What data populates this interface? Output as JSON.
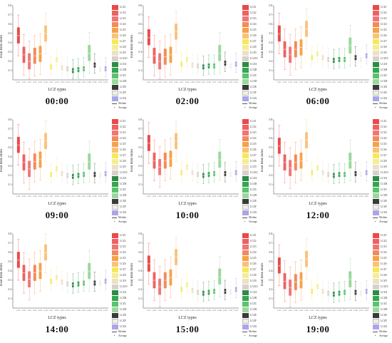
{
  "chart_data": [
    {
      "type": "box",
      "title": "00:00",
      "xlabel": "LCZ types",
      "ylabel": "Heat Risk Index",
      "ylim": [
        0,
        0.8
      ],
      "yticks": [
        "0.1",
        "0.2",
        "0.3",
        "0.4",
        "0.5",
        "0.6",
        "0.7",
        "0.8"
      ],
      "categories": [
        "LCZ1",
        "LCZ2",
        "LCZ3",
        "LCZ4",
        "LCZ5",
        "LCZ6",
        "LCZ7",
        "LCZ8",
        "LCZ9",
        "LCZ10",
        "LCZA",
        "LCZB",
        "LCZC",
        "LCZD",
        "LCZE",
        "LCZF",
        "LCZG"
      ],
      "medians": [
        0.48,
        0.27,
        0.2,
        0.26,
        0.28,
        0.5,
        0.14,
        0.22,
        0.13,
        0.12,
        0.1,
        0.11,
        0.12,
        0.29,
        0.16,
        0.11,
        0.12
      ],
      "averages": [
        0.47,
        0.27,
        0.2,
        0.26,
        0.28,
        0.5,
        0.14,
        0.21,
        0.13,
        0.12,
        0.1,
        0.11,
        0.12,
        0.28,
        0.16,
        0.12,
        0.12
      ]
    },
    {
      "type": "box",
      "title": "02:00",
      "xlabel": "LCZ types",
      "ylabel": "Heat Risk Index",
      "ylim": [
        0,
        0.8
      ],
      "yticks": [
        "0.1",
        "0.2",
        "0.3",
        "0.4",
        "0.5",
        "0.6",
        "0.7",
        "0.8"
      ],
      "categories": [
        "LCZ1",
        "LCZ2",
        "LCZ3",
        "LCZ4",
        "LCZ5",
        "LCZ6",
        "LCZ7",
        "LCZ8",
        "LCZ9",
        "LCZ10",
        "LCZA",
        "LCZB",
        "LCZC",
        "LCZD",
        "LCZE",
        "LCZF",
        "LCZG"
      ],
      "medians": [
        0.46,
        0.26,
        0.2,
        0.25,
        0.27,
        0.52,
        0.17,
        0.22,
        0.16,
        0.15,
        0.14,
        0.15,
        0.15,
        0.29,
        0.18,
        0.15,
        0.17
      ],
      "averages": [
        0.45,
        0.26,
        0.2,
        0.25,
        0.27,
        0.52,
        0.17,
        0.21,
        0.16,
        0.15,
        0.14,
        0.15,
        0.15,
        0.28,
        0.18,
        0.16,
        0.17
      ]
    },
    {
      "type": "box",
      "title": "06:00",
      "xlabel": "LCZ types",
      "ylabel": "Heat Risk Index",
      "ylim": [
        0,
        0.8
      ],
      "yticks": [
        "0.1",
        "0.2",
        "0.3",
        "0.4",
        "0.5",
        "0.6",
        "0.7",
        "0.8"
      ],
      "categories": [
        "LCZ1",
        "LCZ2",
        "LCZ3",
        "LCZ4",
        "LCZ5",
        "LCZ6",
        "LCZ7",
        "LCZ8",
        "LCZ9",
        "LCZ10",
        "LCZA",
        "LCZB",
        "LCZC",
        "LCZD",
        "LCZE",
        "LCZF",
        "LCZG"
      ],
      "medians": [
        0.5,
        0.33,
        0.27,
        0.33,
        0.35,
        0.55,
        0.24,
        0.28,
        0.24,
        0.22,
        0.21,
        0.22,
        0.22,
        0.37,
        0.24,
        0.22,
        0.26
      ],
      "averages": [
        0.49,
        0.33,
        0.27,
        0.33,
        0.35,
        0.55,
        0.24,
        0.27,
        0.24,
        0.22,
        0.21,
        0.22,
        0.22,
        0.36,
        0.24,
        0.23,
        0.26
      ]
    },
    {
      "type": "box",
      "title": "09:00",
      "xlabel": "LCZ types",
      "ylabel": "Heat Risk Index",
      "ylim": [
        0,
        0.8
      ],
      "yticks": [
        "0.1",
        "0.2",
        "0.3",
        "0.4",
        "0.5",
        "0.6",
        "0.7",
        "0.8"
      ],
      "categories": [
        "LCZ1",
        "LCZ2",
        "LCZ3",
        "LCZ4",
        "LCZ5",
        "LCZ6",
        "LCZ7",
        "LCZ8",
        "LCZ9",
        "LCZ10",
        "LCZA",
        "LCZB",
        "LCZC",
        "LCZD",
        "LCZE",
        "LCZF",
        "LCZG"
      ],
      "medians": [
        0.53,
        0.34,
        0.27,
        0.35,
        0.37,
        0.57,
        0.21,
        0.27,
        0.22,
        0.2,
        0.19,
        0.2,
        0.21,
        0.35,
        0.21,
        0.2,
        0.22
      ],
      "averages": [
        0.52,
        0.34,
        0.27,
        0.35,
        0.37,
        0.57,
        0.21,
        0.26,
        0.22,
        0.2,
        0.19,
        0.2,
        0.21,
        0.34,
        0.21,
        0.21,
        0.22
      ]
    },
    {
      "type": "box",
      "title": "10:00",
      "xlabel": "LCZ types",
      "ylabel": "Heat Risk Index",
      "ylim": [
        0,
        0.8
      ],
      "yticks": [
        "0.1",
        "0.2",
        "0.3",
        "0.4",
        "0.5",
        "0.6",
        "0.7",
        "0.8"
      ],
      "categories": [
        "LCZ1",
        "LCZ2",
        "LCZ3",
        "LCZ4",
        "LCZ5",
        "LCZ6",
        "LCZ7",
        "LCZ8",
        "LCZ9",
        "LCZ10",
        "LCZA",
        "LCZB",
        "LCZC",
        "LCZD",
        "LCZE",
        "LCZF",
        "LCZG"
      ],
      "medians": [
        0.55,
        0.36,
        0.29,
        0.36,
        0.38,
        0.57,
        0.23,
        0.29,
        0.23,
        0.21,
        0.2,
        0.21,
        0.22,
        0.37,
        0.22,
        0.21,
        0.23
      ],
      "averages": [
        0.54,
        0.36,
        0.29,
        0.36,
        0.38,
        0.57,
        0.23,
        0.28,
        0.23,
        0.21,
        0.2,
        0.21,
        0.22,
        0.36,
        0.22,
        0.22,
        0.23
      ]
    },
    {
      "type": "box",
      "title": "12:00",
      "xlabel": "LCZ types",
      "ylabel": "Heat Risk Index",
      "ylim": [
        0,
        0.8
      ],
      "yticks": [
        "0.1",
        "0.2",
        "0.3",
        "0.4",
        "0.5",
        "0.6",
        "0.7",
        "0.8"
      ],
      "categories": [
        "LCZ1",
        "LCZ2",
        "LCZ3",
        "LCZ4",
        "LCZ5",
        "LCZ6",
        "LCZ7",
        "LCZ8",
        "LCZ9",
        "LCZ10",
        "LCZA",
        "LCZB",
        "LCZC",
        "LCZD",
        "LCZE",
        "LCZF",
        "LCZG"
      ],
      "medians": [
        0.52,
        0.34,
        0.28,
        0.34,
        0.36,
        0.58,
        0.23,
        0.28,
        0.23,
        0.21,
        0.2,
        0.21,
        0.21,
        0.36,
        0.22,
        0.21,
        0.23
      ],
      "averages": [
        0.51,
        0.34,
        0.28,
        0.34,
        0.36,
        0.58,
        0.23,
        0.27,
        0.23,
        0.21,
        0.2,
        0.21,
        0.21,
        0.35,
        0.22,
        0.22,
        0.23
      ]
    },
    {
      "type": "box",
      "title": "14:00",
      "xlabel": "LCZ types",
      "ylabel": "Heat Risk Index",
      "ylim": [
        0,
        0.8
      ],
      "yticks": [
        "0.1",
        "0.2",
        "0.3",
        "0.4",
        "0.5",
        "0.6",
        "0.7",
        "0.8"
      ],
      "categories": [
        "LCZ1",
        "LCZ2",
        "LCZ3",
        "LCZ4",
        "LCZ5",
        "LCZ6",
        "LCZ7",
        "LCZ8",
        "LCZ9",
        "LCZ10",
        "LCZA",
        "LCZB",
        "LCZC",
        "LCZD",
        "LCZE",
        "LCZF",
        "LCZG"
      ],
      "medians": [
        0.52,
        0.38,
        0.31,
        0.38,
        0.4,
        0.6,
        0.29,
        0.33,
        0.28,
        0.26,
        0.25,
        0.26,
        0.27,
        0.4,
        0.27,
        0.27,
        0.29
      ],
      "averages": [
        0.51,
        0.38,
        0.31,
        0.38,
        0.4,
        0.6,
        0.29,
        0.32,
        0.28,
        0.26,
        0.25,
        0.26,
        0.27,
        0.39,
        0.27,
        0.28,
        0.29
      ]
    },
    {
      "type": "box",
      "title": "15:00",
      "xlabel": "LCZ types",
      "ylabel": "Heat Risk Index",
      "ylim": [
        0,
        0.8
      ],
      "yticks": [
        "0.1",
        "0.2",
        "0.3",
        "0.4",
        "0.5",
        "0.6",
        "0.7",
        "0.8"
      ],
      "categories": [
        "LCZ1",
        "LCZ2",
        "LCZ3",
        "LCZ4",
        "LCZ5",
        "LCZ6",
        "LCZ7",
        "LCZ8",
        "LCZ9",
        "LCZ10",
        "LCZA",
        "LCZB",
        "LCZC",
        "LCZD",
        "LCZE",
        "LCZF",
        "LCZG"
      ],
      "medians": [
        0.48,
        0.3,
        0.23,
        0.3,
        0.33,
        0.55,
        0.2,
        0.25,
        0.19,
        0.17,
        0.16,
        0.17,
        0.18,
        0.34,
        0.18,
        0.17,
        0.2
      ],
      "averages": [
        0.47,
        0.3,
        0.23,
        0.3,
        0.33,
        0.55,
        0.2,
        0.24,
        0.19,
        0.17,
        0.16,
        0.17,
        0.18,
        0.33,
        0.18,
        0.18,
        0.2
      ]
    },
    {
      "type": "box",
      "title": "19:00",
      "xlabel": "LCZ types",
      "ylabel": "Heat Risk Index",
      "ylim": [
        0,
        0.8
      ],
      "yticks": [
        "0.1",
        "0.2",
        "0.3",
        "0.4",
        "0.5",
        "0.6",
        "0.7",
        "0.8"
      ],
      "categories": [
        "LCZ1",
        "LCZ2",
        "LCZ3",
        "LCZ4",
        "LCZ5",
        "LCZ6",
        "LCZ7",
        "LCZ8",
        "LCZ9",
        "LCZ10",
        "LCZA",
        "LCZB",
        "LCZC",
        "LCZD",
        "LCZE",
        "LCZF",
        "LCZG"
      ],
      "medians": [
        0.46,
        0.29,
        0.22,
        0.28,
        0.3,
        0.53,
        0.18,
        0.23,
        0.18,
        0.16,
        0.15,
        0.16,
        0.17,
        0.31,
        0.17,
        0.16,
        0.18
      ],
      "averages": [
        0.45,
        0.29,
        0.22,
        0.28,
        0.3,
        0.53,
        0.18,
        0.22,
        0.18,
        0.16,
        0.15,
        0.16,
        0.17,
        0.3,
        0.17,
        0.17,
        0.18
      ]
    }
  ],
  "legend": {
    "items": [
      "LCZ1",
      "LCZ2",
      "LCZ3",
      "LCZ4",
      "LCZ5",
      "LCZ6",
      "LCZ7",
      "LCZ8",
      "LCZ9",
      "LCZ10",
      "LCZA",
      "LCZB",
      "LCZC",
      "LCZD",
      "LCZE",
      "LCZF",
      "LCZG"
    ],
    "colors": [
      "#e84a4a",
      "#ef6161",
      "#f07676",
      "#f38a5a",
      "#f6a24a",
      "#f9c27a",
      "#f7e85a",
      "#f5ee8f",
      "#ece0c8",
      "#d6d2cb",
      "#2d8b46",
      "#35a552",
      "#5bc26e",
      "#9ad89c",
      "#3a3a3a",
      "#f0efe4",
      "#a9a6e8"
    ],
    "median_label": "Median",
    "average_label": "Average"
  }
}
